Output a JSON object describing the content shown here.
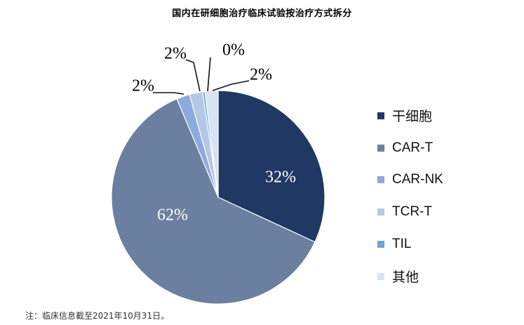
{
  "chart_data": {
    "type": "pie",
    "title": "国内在研细胞治疗临床试验按治疗方式拆分",
    "legend_position": "right",
    "categories": [
      "干细胞",
      "CAR-T",
      "CAR-NK",
      "TCR-T",
      "TIL",
      "其他"
    ],
    "values": [
      32,
      62,
      2,
      2,
      0,
      2
    ],
    "value_labels": [
      "32%",
      "62%",
      "2%",
      "2%",
      "0%",
      "2%"
    ],
    "colors": [
      "#1f3864",
      "#6b7fa0",
      "#8ea9db",
      "#b4c7e7",
      "#6fa2d5",
      "#dae3f3"
    ],
    "label_placement": [
      "inside",
      "inside",
      "outside",
      "outside",
      "outside",
      "outside"
    ]
  },
  "footnote": "注：临床信息截至2021年10月31日。"
}
